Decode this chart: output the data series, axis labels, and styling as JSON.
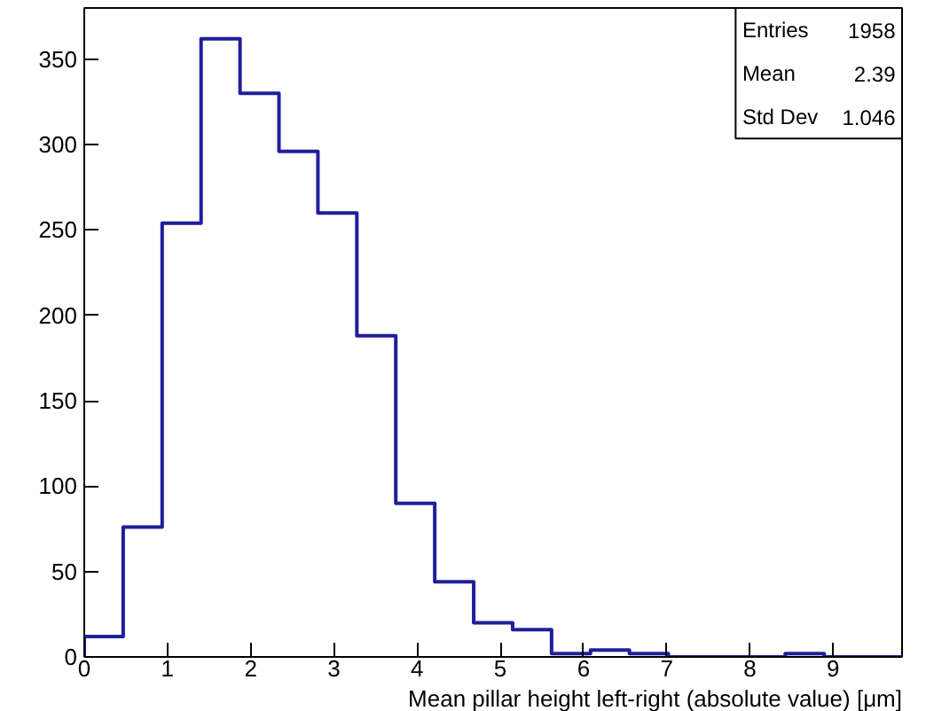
{
  "chart_data": {
    "type": "histogram",
    "xlabel": "Mean pillar height left-right (absolute value) [μm]",
    "bins": [
      0,
      0.468,
      0.936,
      1.404,
      1.872,
      2.34,
      2.808,
      3.276,
      3.744,
      4.212,
      4.68,
      5.148,
      5.616,
      6.084,
      6.552,
      7.02,
      7.488,
      7.956,
      8.424,
      8.892,
      9.36,
      9.828
    ],
    "values": [
      12,
      76,
      254,
      362,
      330,
      296,
      260,
      188,
      90,
      44,
      20,
      16,
      2,
      4,
      2,
      0,
      0,
      0,
      2,
      0,
      0
    ],
    "color": "#1f1f9c",
    "xlim": [
      0,
      9.828
    ],
    "ylim": [
      0,
      380
    ],
    "xticks": [
      0,
      1,
      2,
      3,
      4,
      5,
      6,
      7,
      8,
      9
    ],
    "yticks": [
      0,
      50,
      100,
      150,
      200,
      250,
      300,
      350
    ],
    "grid": false,
    "annotations": [
      "Entries 1958",
      "Mean 2.39",
      "Std Dev 1.046"
    ]
  }
}
